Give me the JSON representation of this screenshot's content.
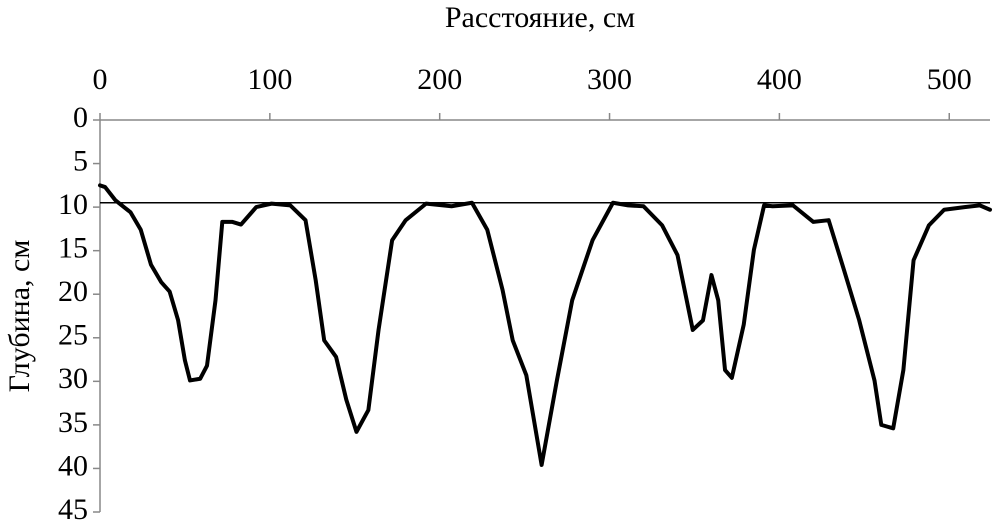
{
  "chart_data": {
    "type": "line",
    "xlabel": "Расстояние, см",
    "ylabel": "Глубина, см",
    "x_axis_position": "top",
    "y_inverted": true,
    "xlim": [
      0,
      524
    ],
    "ylim": [
      0,
      45
    ],
    "xticks": [
      0,
      100,
      200,
      300,
      400,
      500
    ],
    "yticks": [
      0,
      5,
      10,
      15,
      20,
      25,
      30,
      35,
      40,
      45
    ],
    "reference_line": 9.5,
    "reference_color": "#000000",
    "series": [
      {
        "color": "#000000",
        "x": [
          0,
          3,
          9,
          18,
          24,
          30,
          36,
          41,
          46,
          50,
          53,
          59,
          63,
          68,
          72,
          78,
          83,
          92,
          101,
          112,
          121,
          127,
          132,
          139,
          145,
          151,
          158,
          164,
          172,
          180,
          192,
          207,
          219,
          228,
          237,
          243,
          251,
          260,
          269,
          278,
          290,
          302,
          311,
          320,
          331,
          340,
          349,
          355,
          360,
          364,
          368,
          372,
          379,
          385,
          391,
          396,
          408,
          420,
          429,
          438,
          447,
          456,
          460,
          467,
          473,
          479,
          488,
          497,
          509,
          518,
          524
        ],
        "values": [
          7.5,
          7.7,
          9.2,
          10.6,
          12.6,
          16.6,
          18.6,
          19.7,
          23,
          27.6,
          29.9,
          29.7,
          28.2,
          20.7,
          11.7,
          11.7,
          12,
          10,
          9.6,
          9.8,
          11.5,
          18.4,
          25.3,
          27.2,
          32.1,
          35.8,
          33.3,
          24.1,
          13.8,
          11.5,
          9.6,
          9.9,
          9.5,
          12.6,
          19.5,
          25.3,
          29.3,
          39.6,
          29.9,
          20.7,
          13.8,
          9.5,
          9.8,
          9.9,
          12.1,
          15.5,
          24.1,
          23,
          17.8,
          20.7,
          28.7,
          29.6,
          23.5,
          14.9,
          9.8,
          9.9,
          9.8,
          11.7,
          11.5,
          17.2,
          23,
          29.9,
          35,
          35.4,
          28.7,
          16.1,
          12.1,
          10.3,
          10,
          9.8,
          10.3
        ]
      }
    ]
  }
}
